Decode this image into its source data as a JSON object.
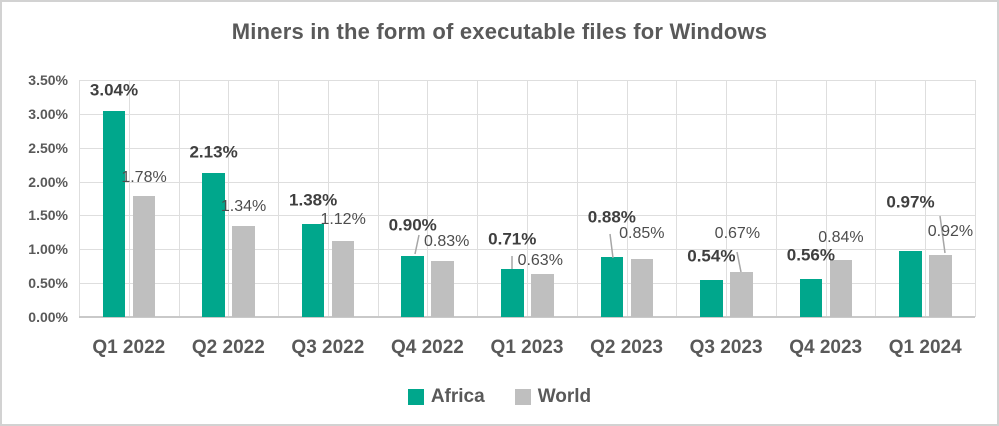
{
  "title": "Miners in the form of executable files for Windows",
  "colors": {
    "africa": "#00a78c",
    "world": "#bfbfbf",
    "gridline": "#dedede",
    "axis_line": "#c9c9c9",
    "title_text": "#595959",
    "africa_label_text": "#3f3f3f",
    "world_label_text": "#4d4d4d",
    "leader_line": "#a6a6a6"
  },
  "chart_data": {
    "type": "bar",
    "title": "Miners in the form of executable files for Windows",
    "categories": [
      "Q1 2022",
      "Q2 2022",
      "Q3 2022",
      "Q4 2022",
      "Q1 2023",
      "Q2 2023",
      "Q3 2023",
      "Q4 2023",
      "Q1 2024"
    ],
    "series": [
      {
        "name": "Africa",
        "color": "#00a78c",
        "values": [
          3.04,
          2.13,
          1.38,
          0.9,
          0.71,
          0.88,
          0.54,
          0.56,
          0.97
        ],
        "labels": [
          "3.04%",
          "2.13%",
          "1.38%",
          "0.90%",
          "0.71%",
          "0.88%",
          "0.54%",
          "0.56%",
          "0.97%"
        ]
      },
      {
        "name": "World",
        "color": "#bfbfbf",
        "values": [
          1.78,
          1.34,
          1.12,
          0.83,
          0.63,
          0.85,
          0.67,
          0.84,
          0.92
        ],
        "labels": [
          "1.78%",
          "1.34%",
          "1.12%",
          "0.83%",
          "0.63%",
          "0.85%",
          "0.67%",
          "0.84%",
          "0.92%"
        ]
      }
    ],
    "y_axis": {
      "unit": "%",
      "min": 0,
      "max": 3.5,
      "tick_step": 0.5,
      "ticks": [
        "0.00%",
        "0.50%",
        "1.00%",
        "1.50%",
        "2.00%",
        "2.50%",
        "3.00%",
        "3.50%"
      ]
    },
    "grid": true,
    "legend_position": "bottom"
  },
  "legend": {
    "items": [
      {
        "label": "Africa",
        "color": "#00a78c"
      },
      {
        "label": "World",
        "color": "#bfbfbf"
      }
    ]
  }
}
